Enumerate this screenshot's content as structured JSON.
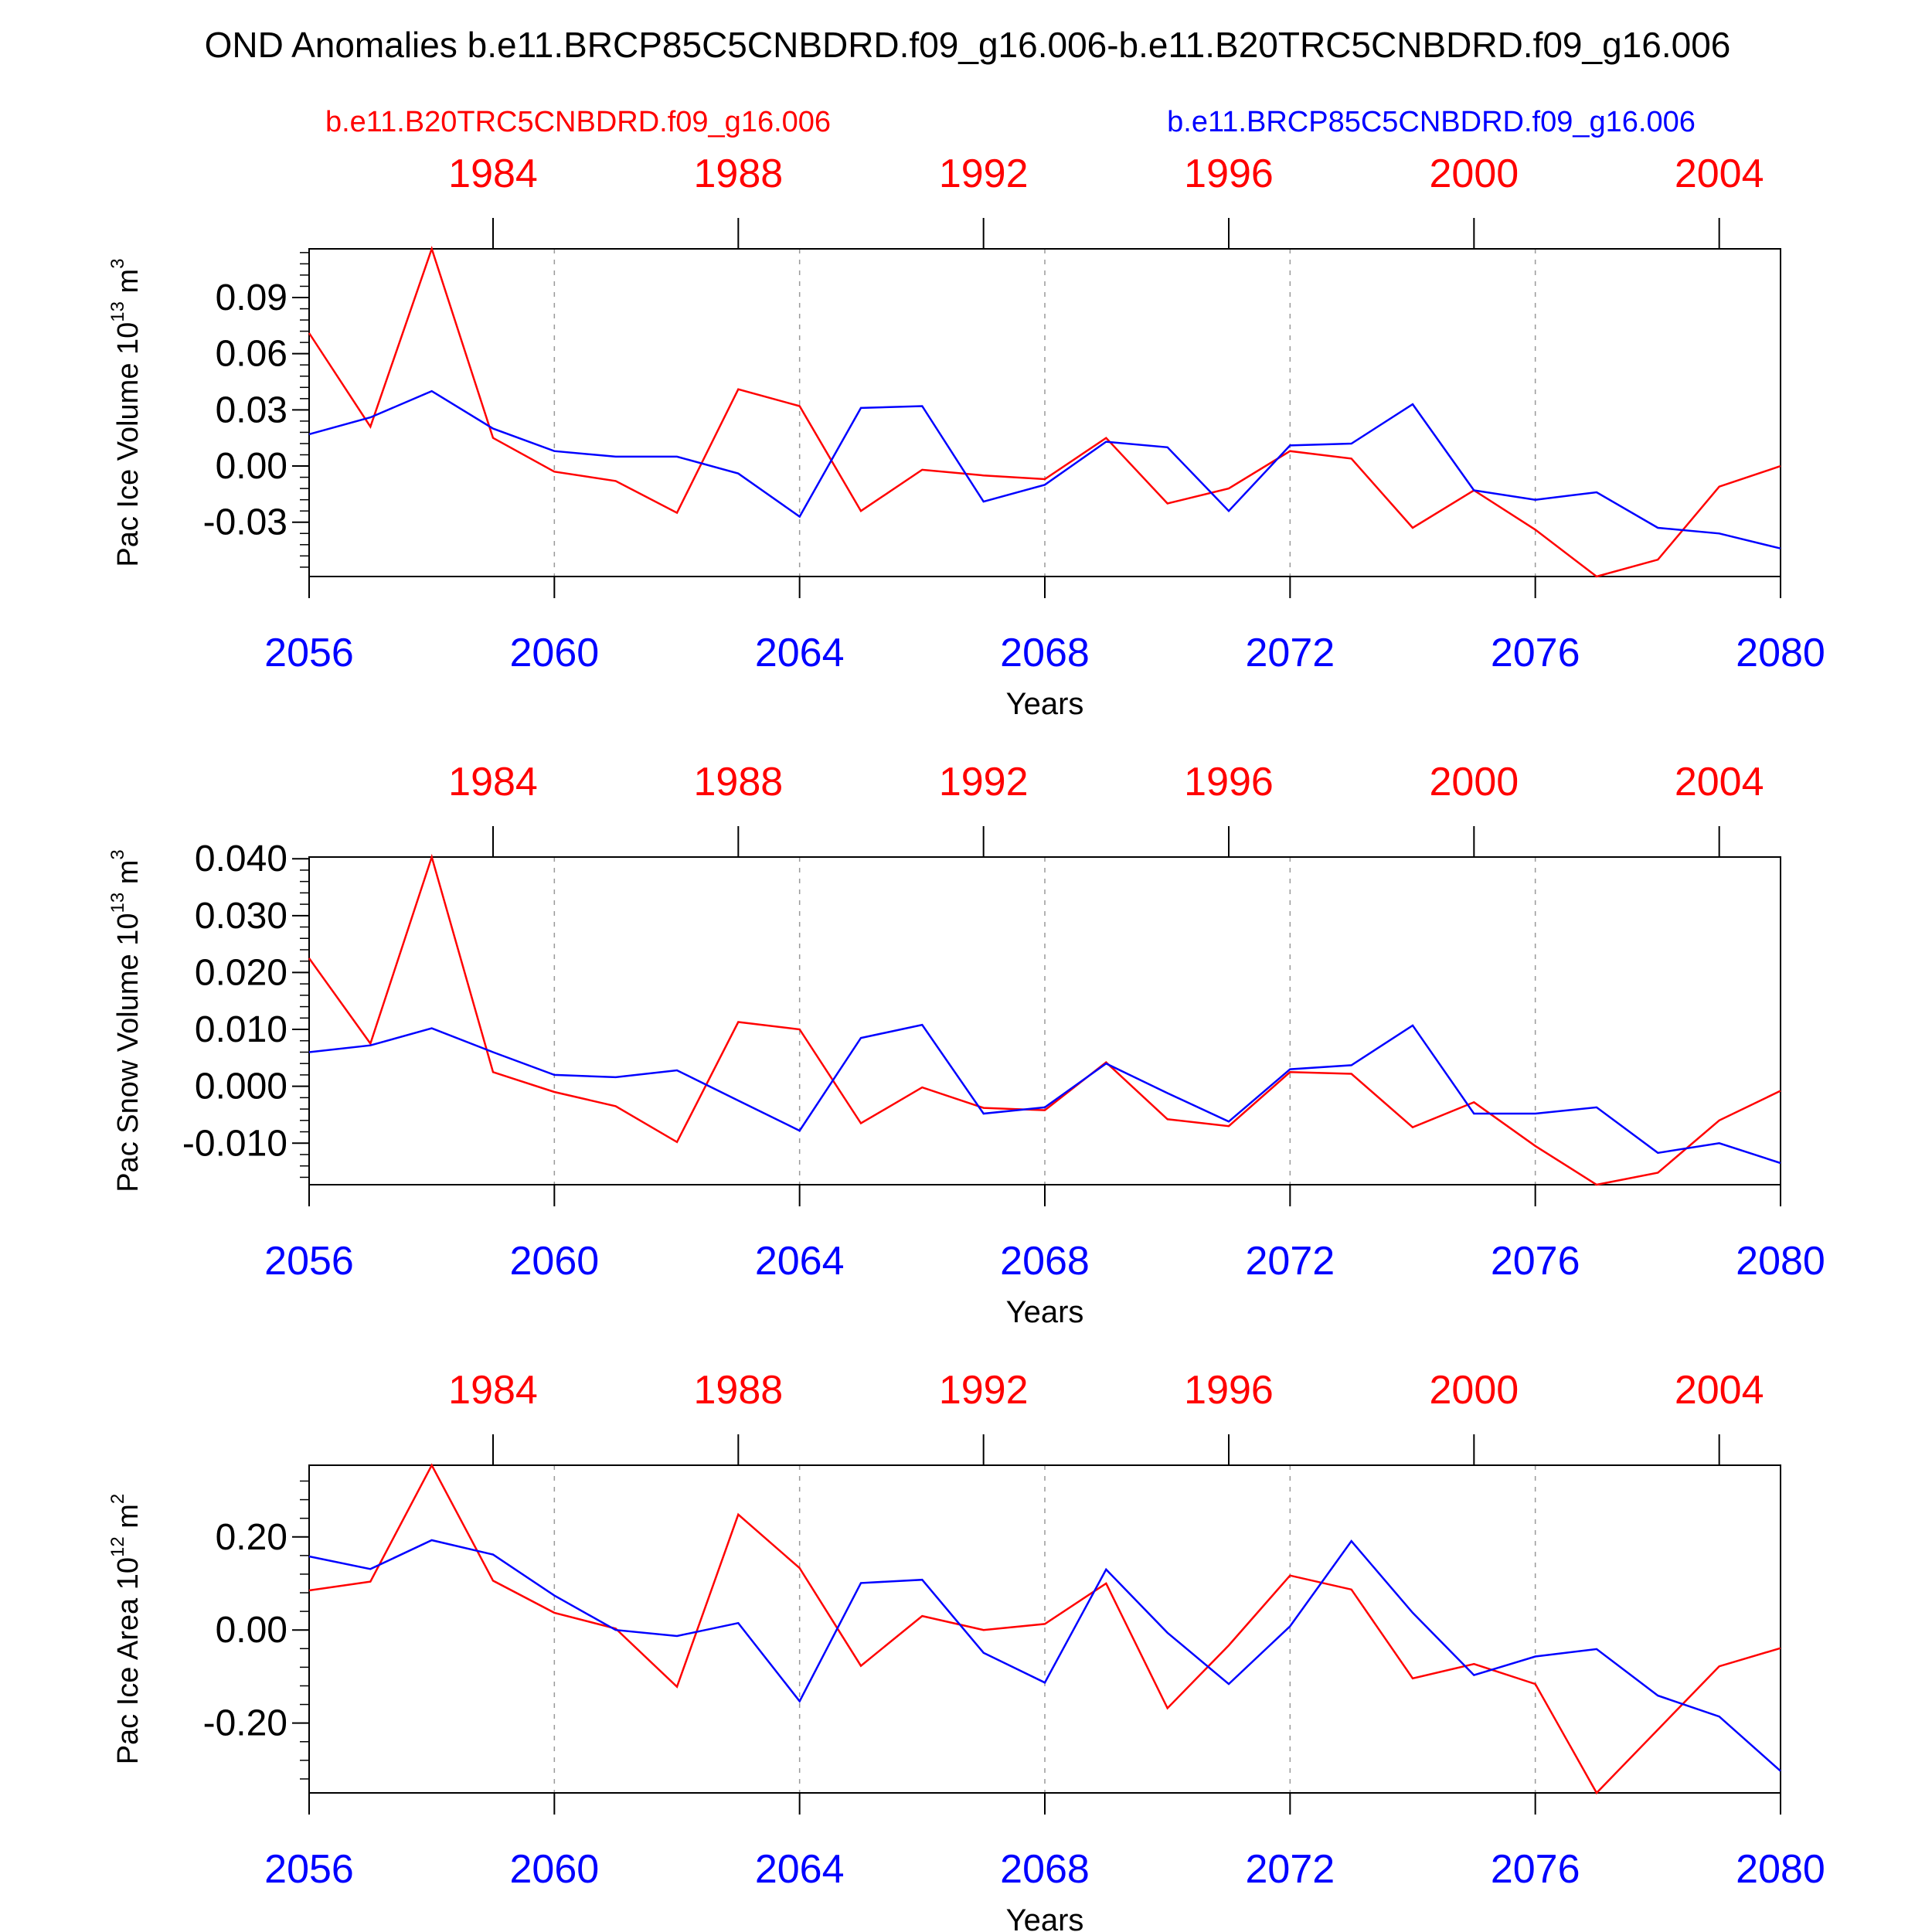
{
  "figure": {
    "title": "OND Anomalies b.e11.BRCP85C5CNBDRD.f09_g16.006-b.e11.B20TRC5CNBDRD.f09_g16.006",
    "ref_label": "b.e11.B20TRC5CNBDRD.f09_g16.006",
    "exp_label": "b.e11.BRCP85C5CNBDRD.f09_g16.006",
    "colors": {
      "ref": "#ff0000",
      "exp": "#0000ff",
      "axis": "#000000",
      "grid": "#9a9a9a"
    }
  },
  "chart_data": [
    {
      "type": "line",
      "ylabel": {
        "main": "Pac Ice Volume 10",
        "sup": "13",
        "unit": " m",
        "unit_sup": "3"
      },
      "xlabel": "Years",
      "xlim": [
        2056,
        2080
      ],
      "ylim": [
        -0.059,
        0.116
      ],
      "yticks": [
        -0.03,
        0.0,
        0.03,
        0.06,
        0.09
      ],
      "ytick_labels": [
        "-0.03",
        "0.00",
        "0.03",
        "0.06",
        "0.09"
      ],
      "yminor_step": 0.006,
      "xticks": [
        2056,
        2060,
        2064,
        2068,
        2072,
        2076,
        2080
      ],
      "xtick_labels": [
        "2056",
        "2060",
        "2064",
        "2068",
        "2072",
        "2076",
        "2080"
      ],
      "top_ticks": [
        2059,
        2063,
        2067,
        2071,
        2075,
        2079
      ],
      "top_tick_labels": [
        "1984",
        "1988",
        "1992",
        "1996",
        "2000",
        "2004"
      ],
      "x": [
        2056,
        2057,
        2058,
        2059,
        2060,
        2061,
        2062,
        2063,
        2064,
        2065,
        2066,
        2067,
        2068,
        2069,
        2070,
        2071,
        2072,
        2073,
        2074,
        2075,
        2076,
        2077,
        2078,
        2079,
        2080
      ],
      "series": [
        {
          "name": "b.e11.B20TRC5CNBDRD.f09_g16.006",
          "color": "#ff0000",
          "values": [
            0.071,
            0.021,
            0.116,
            0.015,
            -0.003,
            -0.008,
            -0.025,
            0.041,
            0.032,
            -0.024,
            -0.002,
            -0.005,
            -0.007,
            0.015,
            -0.02,
            -0.012,
            0.008,
            0.004,
            -0.033,
            -0.013,
            -0.034,
            -0.059,
            -0.05,
            -0.011,
            -0.0
          ]
        },
        {
          "name": "b.e11.BRCP85C5CNBDRD.f09_g16.006",
          "color": "#0000ff",
          "values": [
            0.017,
            0.026,
            0.04,
            0.02,
            0.008,
            0.005,
            0.005,
            -0.004,
            -0.027,
            0.031,
            0.032,
            -0.019,
            -0.01,
            0.013,
            0.01,
            -0.024,
            0.011,
            0.012,
            0.033,
            -0.013,
            -0.018,
            -0.014,
            -0.033,
            -0.036,
            -0.044
          ]
        }
      ]
    },
    {
      "type": "line",
      "ylabel": {
        "main": "Pac Snow Volume 10",
        "sup": "13",
        "unit": " m",
        "unit_sup": "3"
      },
      "xlabel": "Years",
      "xlim": [
        2056,
        2080
      ],
      "ylim": [
        -0.0173,
        0.0403
      ],
      "yticks": [
        -0.01,
        0.0,
        0.01,
        0.02,
        0.03,
        0.04
      ],
      "ytick_labels": [
        "-0.010",
        "0.000",
        "0.010",
        "0.020",
        "0.030",
        "0.040"
      ],
      "yminor_step": 0.002,
      "xticks": [
        2056,
        2060,
        2064,
        2068,
        2072,
        2076,
        2080
      ],
      "xtick_labels": [
        "2056",
        "2060",
        "2064",
        "2068",
        "2072",
        "2076",
        "2080"
      ],
      "top_ticks": [
        2059,
        2063,
        2067,
        2071,
        2075,
        2079
      ],
      "top_tick_labels": [
        "1984",
        "1988",
        "1992",
        "1996",
        "2000",
        "2004"
      ],
      "x": [
        2056,
        2057,
        2058,
        2059,
        2060,
        2061,
        2062,
        2063,
        2064,
        2065,
        2066,
        2067,
        2068,
        2069,
        2070,
        2071,
        2072,
        2073,
        2074,
        2075,
        2076,
        2077,
        2078,
        2079,
        2080
      ],
      "series": [
        {
          "name": "b.e11.B20TRC5CNBDRD.f09_g16.006",
          "color": "#ff0000",
          "values": [
            0.0225,
            0.0075,
            0.0403,
            0.0025,
            -0.001,
            -0.0035,
            -0.0098,
            0.0113,
            0.01,
            -0.0065,
            -0.0002,
            -0.0038,
            -0.0042,
            0.0042,
            -0.0058,
            -0.007,
            0.0025,
            0.0022,
            -0.0072,
            -0.0028,
            -0.0105,
            -0.0173,
            -0.0152,
            -0.006,
            -0.0008
          ]
        },
        {
          "name": "b.e11.BRCP85C5CNBDRD.f09_g16.006",
          "color": "#0000ff",
          "values": [
            0.006,
            0.0072,
            0.0102,
            0.006,
            0.002,
            0.0016,
            0.0028,
            -0.0025,
            -0.0078,
            0.0085,
            0.0108,
            -0.0048,
            -0.0037,
            0.004,
            -0.0012,
            -0.0062,
            0.003,
            0.0037,
            0.0107,
            -0.0048,
            -0.0048,
            -0.0037,
            -0.0117,
            -0.01,
            -0.0135
          ]
        }
      ]
    },
    {
      "type": "line",
      "ylabel": {
        "main": "Pac Ice Area 10",
        "sup": "12",
        "unit": " m",
        "unit_sup": "2"
      },
      "xlabel": "Years",
      "xlim": [
        2056,
        2080
      ],
      "ylim": [
        -0.35,
        0.354
      ],
      "yticks": [
        -0.2,
        0.0,
        0.2
      ],
      "ytick_labels": [
        "-0.20",
        "0.00",
        "0.20"
      ],
      "yminor_step": 0.04,
      "xticks": [
        2056,
        2060,
        2064,
        2068,
        2072,
        2076,
        2080
      ],
      "xtick_labels": [
        "2056",
        "2060",
        "2064",
        "2068",
        "2072",
        "2076",
        "2080"
      ],
      "top_ticks": [
        2059,
        2063,
        2067,
        2071,
        2075,
        2079
      ],
      "top_tick_labels": [
        "1984",
        "1988",
        "1992",
        "1996",
        "2000",
        "2004"
      ],
      "x": [
        2056,
        2057,
        2058,
        2059,
        2060,
        2061,
        2062,
        2063,
        2064,
        2065,
        2066,
        2067,
        2068,
        2069,
        2070,
        2071,
        2072,
        2073,
        2074,
        2075,
        2076,
        2077,
        2078,
        2079,
        2080
      ],
      "series": [
        {
          "name": "b.e11.B20TRC5CNBDRD.f09_g16.006",
          "color": "#ff0000",
          "values": [
            0.085,
            0.104,
            0.354,
            0.106,
            0.037,
            0.003,
            -0.122,
            0.248,
            0.133,
            -0.077,
            0.03,
            0.0,
            0.013,
            0.1,
            -0.168,
            -0.033,
            0.117,
            0.087,
            -0.104,
            -0.073,
            -0.116,
            -0.35,
            -0.214,
            -0.078,
            -0.039
          ]
        },
        {
          "name": "b.e11.BRCP85C5CNBDRD.f09_g16.006",
          "color": "#0000ff",
          "values": [
            0.158,
            0.131,
            0.193,
            0.162,
            0.074,
            0.0,
            -0.013,
            0.015,
            -0.153,
            0.101,
            0.108,
            -0.049,
            -0.113,
            0.13,
            -0.006,
            -0.116,
            0.008,
            0.191,
            0.037,
            -0.097,
            -0.057,
            -0.041,
            -0.141,
            -0.186,
            -0.303
          ]
        }
      ]
    }
  ]
}
